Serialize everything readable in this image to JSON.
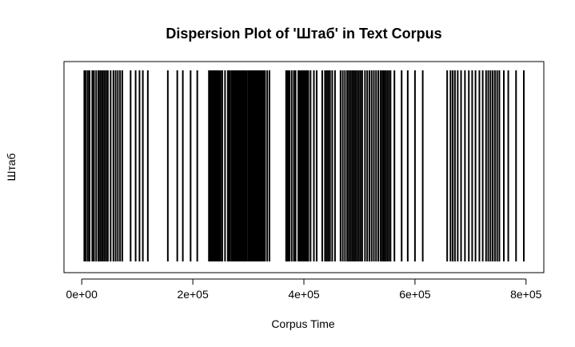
{
  "chart_data": {
    "type": "scatter",
    "title": "Dispersion Plot of 'Штаб' in Text Corpus",
    "xlabel": "Corpus Time",
    "ylabel": "Штаб",
    "xlim": [
      -32000,
      832000
    ],
    "xticks": [
      0,
      200000,
      400000,
      600000,
      800000
    ],
    "xtick_labels": [
      "0e+00",
      "2e+05",
      "4e+05",
      "6e+05",
      "8e+05"
    ],
    "grid": false,
    "line_color": "#000000",
    "series": [
      {
        "values": [
          4600,
          7500,
          11000,
          14000,
          19000,
          22000,
          26000,
          30000,
          33000,
          36000,
          38000,
          41000,
          44000,
          47000,
          52000,
          57000,
          61000,
          65000,
          69000,
          73000,
          88000,
          97000,
          104000,
          110000,
          119000,
          155000,
          172000,
          182000,
          196000,
          208000,
          229000,
          230500,
          232000,
          233500,
          235000,
          236500,
          238000,
          239500,
          241000,
          242500,
          244000,
          245500,
          247000,
          248500,
          250000,
          253000,
          258000,
          263000,
          265000,
          267000,
          270000,
          271500,
          273000,
          274500,
          276000,
          277500,
          279000,
          280500,
          282000,
          283500,
          285000,
          286500,
          288000,
          289500,
          291000,
          292500,
          294000,
          295500,
          297000,
          300000,
          301500,
          303000,
          304500,
          306000,
          307500,
          309000,
          310500,
          312000,
          313500,
          315000,
          316500,
          318000,
          319500,
          321000,
          322500,
          324000,
          325500,
          327000,
          328500,
          330000,
          334000,
          338000,
          368000,
          369500,
          371000,
          372500,
          374000,
          378000,
          382000,
          385000,
          390000,
          391500,
          393000,
          394500,
          396000,
          397500,
          399000,
          400500,
          402000,
          403500,
          405000,
          406500,
          408000,
          412000,
          418000,
          423000,
          433000,
          438000,
          441000,
          444000,
          447000,
          451000,
          456000,
          466000,
          470000,
          474000,
          478000,
          481000,
          484000,
          487000,
          490000,
          493000,
          496000,
          499000,
          502000,
          505000,
          510000,
          514000,
          518000,
          522000,
          526000,
          530000,
          534000,
          538000,
          541000,
          544000,
          547000,
          550000,
          553000,
          556000,
          563000,
          576000,
          587000,
          600000,
          614000,
          658000,
          664000,
          668000,
          672000,
          677000,
          683000,
          690000,
          697000,
          703000,
          709000,
          716000,
          722000,
          728000,
          732000,
          736000,
          740000,
          744000,
          748000,
          752000,
          760000,
          768000,
          782000,
          796000
        ]
      }
    ]
  }
}
